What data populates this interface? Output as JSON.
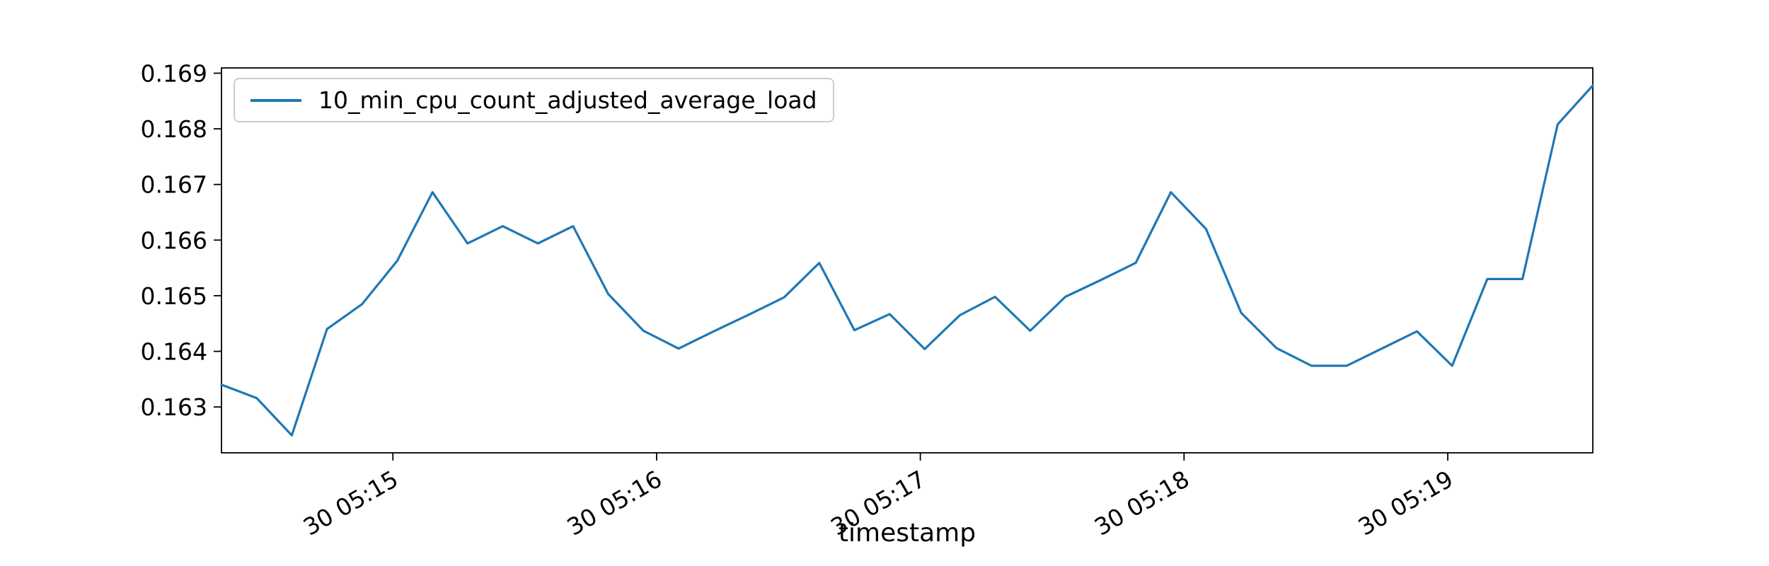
{
  "figure": {
    "background": "#ffffff",
    "title": ""
  },
  "chart_data": {
    "type": "line",
    "title": "",
    "xlabel": "timestamp",
    "ylabel": "",
    "grid": false,
    "legend_position": "upper left",
    "ylim": [
      0.162176,
      0.169095
    ],
    "y_ticks": [
      {
        "label": "0.163",
        "value": 0.163
      },
      {
        "label": "0.164",
        "value": 0.164
      },
      {
        "label": "0.165",
        "value": 0.165
      },
      {
        "label": "0.166",
        "value": 0.166
      },
      {
        "label": "0.167",
        "value": 0.167
      },
      {
        "label": "0.168",
        "value": 0.168
      },
      {
        "label": "0.169",
        "value": 0.169
      }
    ],
    "x_ticks": [
      {
        "label": "30 05:15",
        "time": "05:15:00"
      },
      {
        "label": "30 05:16",
        "time": "05:16:00"
      },
      {
        "label": "30 05:17",
        "time": "05:17:00"
      },
      {
        "label": "30 05:18",
        "time": "05:18:00"
      },
      {
        "label": "30 05:19",
        "time": "05:19:00"
      }
    ],
    "series": [
      {
        "name": "10_min_cpu_count_adjusted_average_load",
        "color": "#1f77b4",
        "x": [
          "05:14:21",
          "05:14:29",
          "05:14:37",
          "05:14:45",
          "05:14:53",
          "05:15:01",
          "05:15:09",
          "05:15:17",
          "05:15:25",
          "05:15:33",
          "05:15:41",
          "05:15:49",
          "05:15:57",
          "05:16:05",
          "05:16:13",
          "05:16:21",
          "05:16:29",
          "05:16:37",
          "05:16:45",
          "05:16:53",
          "05:17:01",
          "05:17:09",
          "05:17:17",
          "05:17:25",
          "05:17:33",
          "05:17:41",
          "05:17:49",
          "05:17:57",
          "05:18:05",
          "05:18:13",
          "05:18:21",
          "05:18:29",
          "05:18:37",
          "05:18:45",
          "05:18:53",
          "05:19:01",
          "05:19:09",
          "05:19:17",
          "05:19:25",
          "05:19:33"
        ],
        "values": [
          0.1634,
          0.16316,
          0.16249,
          0.1644,
          0.16485,
          0.16563,
          0.16686,
          0.16594,
          0.16625,
          0.16594,
          0.16625,
          0.16503,
          0.16437,
          0.16405,
          0.16436,
          0.16466,
          0.16497,
          0.16559,
          0.16438,
          0.16467,
          0.16404,
          0.16465,
          0.16498,
          0.16437,
          0.16498,
          0.16528,
          0.16559,
          0.16686,
          0.1662,
          0.16469,
          0.16406,
          0.16374,
          0.16374,
          0.16405,
          0.16436,
          0.16374,
          0.1653,
          0.1653,
          0.16808,
          0.16878
        ]
      }
    ]
  }
}
